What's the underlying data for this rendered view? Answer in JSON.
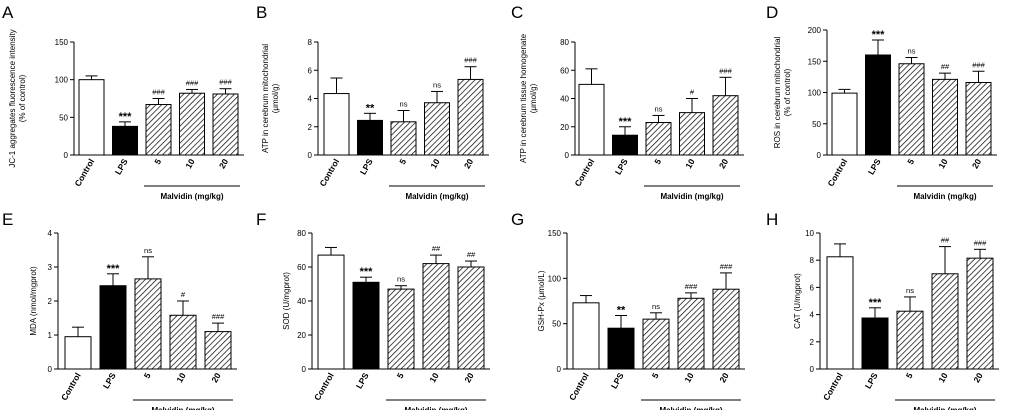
{
  "chart_data": [
    {
      "panel": "A",
      "type": "bar",
      "ylabel": "JC-1 aggregates fluorescence intensity\n(% of control)",
      "ylim": [
        0,
        150
      ],
      "yticks": [
        0,
        50,
        100,
        150
      ],
      "ytick_labels": [
        "0",
        "50",
        "100",
        "150"
      ],
      "categories": [
        "Control",
        "LPS",
        "5",
        "10",
        "20"
      ],
      "values": [
        100,
        38,
        67,
        82,
        81
      ],
      "errors": [
        5,
        6,
        8,
        5,
        7
      ],
      "annotations": [
        "",
        "***",
        "###",
        "###",
        "###"
      ],
      "group_label": "Malvidin (mg/kg)"
    },
    {
      "panel": "B",
      "type": "bar",
      "ylabel": "ATP in cerebrum mitochondrial\n(μmol/g)",
      "ylim": [
        0,
        8
      ],
      "yticks": [
        0,
        2,
        4,
        6,
        8
      ],
      "ytick_labels": [
        "0",
        "2",
        "4",
        "6",
        "8"
      ],
      "categories": [
        "Control",
        "LPS",
        "5",
        "10",
        "20"
      ],
      "values": [
        4.35,
        2.45,
        2.35,
        3.7,
        5.35
      ],
      "errors": [
        1.1,
        0.5,
        0.8,
        0.8,
        0.9
      ],
      "annotations": [
        "",
        "**",
        "ns",
        "ns",
        "###"
      ],
      "group_label": "Malvidin (mg/kg)"
    },
    {
      "panel": "C",
      "type": "bar",
      "ylabel": "ATP in cerebrum tissue homogenate\n(μmol/g)",
      "ylim": [
        0,
        80
      ],
      "yticks": [
        0,
        20,
        40,
        60,
        80
      ],
      "ytick_labels": [
        "0",
        "20",
        "40",
        "60",
        "80"
      ],
      "categories": [
        "Control",
        "LPS",
        "5",
        "10",
        "20"
      ],
      "values": [
        50,
        14,
        23,
        30,
        42
      ],
      "errors": [
        11,
        6,
        5,
        10,
        13
      ],
      "annotations": [
        "",
        "***",
        "ns",
        "#",
        "###"
      ],
      "group_label": "Malvidin (mg/kg)"
    },
    {
      "panel": "D",
      "type": "bar",
      "ylabel": "ROS in cerebrum mitochondrial\n(% of control)",
      "ylim": [
        0,
        200
      ],
      "yticks": [
        0,
        50,
        100,
        150,
        200
      ],
      "ytick_labels": [
        "0",
        "50",
        "100",
        "150",
        "200"
      ],
      "categories": [
        "Control",
        "LPS",
        "5",
        "10",
        "20"
      ],
      "values": [
        99,
        160,
        146,
        121,
        116
      ],
      "errors": [
        6,
        24,
        10,
        10,
        18
      ],
      "annotations": [
        "",
        "***",
        "ns",
        "##",
        "###"
      ],
      "group_label": "Malvidin (mg/kg)"
    },
    {
      "panel": "E",
      "type": "bar",
      "ylabel": "MDA (nmol/mgprot)",
      "ylim": [
        0,
        4
      ],
      "yticks": [
        0,
        1,
        2,
        3,
        4
      ],
      "ytick_labels": [
        "0",
        "1",
        "2",
        "3",
        "4"
      ],
      "categories": [
        "Control",
        "LPS",
        "5",
        "10",
        "20"
      ],
      "values": [
        0.95,
        2.45,
        2.65,
        1.58,
        1.1
      ],
      "errors": [
        0.28,
        0.35,
        0.65,
        0.42,
        0.25
      ],
      "annotations": [
        "",
        "***",
        "ns",
        "#",
        "###"
      ],
      "group_label": "Malvidin (mg/kg)"
    },
    {
      "panel": "F",
      "type": "bar",
      "ylabel": "SOD (U/mgprot)",
      "ylim": [
        0,
        80
      ],
      "yticks": [
        0,
        20,
        40,
        60,
        80
      ],
      "ytick_labels": [
        "0",
        "20",
        "40",
        "60",
        "80"
      ],
      "categories": [
        "Control",
        "LPS",
        "5",
        "10",
        "20"
      ],
      "values": [
        67,
        51,
        47,
        62,
        60
      ],
      "errors": [
        4.5,
        3,
        2,
        5,
        3.5
      ],
      "annotations": [
        "",
        "***",
        "ns",
        "##",
        "##"
      ],
      "group_label": "Malvidin (mg/kg)"
    },
    {
      "panel": "G",
      "type": "bar",
      "ylabel": "GSH-Px (μmol/L)",
      "ylim": [
        0,
        150
      ],
      "yticks": [
        0,
        50,
        100,
        150
      ],
      "ytick_labels": [
        "0",
        "50",
        "100",
        "150"
      ],
      "categories": [
        "Control",
        "LPS",
        "5",
        "10",
        "20"
      ],
      "values": [
        73,
        45,
        55,
        78,
        88
      ],
      "errors": [
        8,
        14,
        7,
        6,
        18
      ],
      "annotations": [
        "",
        "**",
        "ns",
        "###",
        "###"
      ],
      "group_label": "Malvidin (mg/kg)"
    },
    {
      "panel": "H",
      "type": "bar",
      "ylabel": "CAT (U/mgprot)",
      "ylim": [
        0,
        10
      ],
      "yticks": [
        0,
        2,
        4,
        6,
        8,
        10
      ],
      "ytick_labels": [
        "0",
        "2",
        "4",
        "6",
        "8",
        "10"
      ],
      "categories": [
        "Control",
        "LPS",
        "5",
        "10",
        "20"
      ],
      "values": [
        8.25,
        3.75,
        4.25,
        7.0,
        8.15
      ],
      "errors": [
        0.95,
        0.75,
        1.05,
        2.0,
        0.65
      ],
      "annotations": [
        "",
        "***",
        "ns",
        "##",
        "###"
      ],
      "group_label": "Malvidin (mg/kg)"
    }
  ],
  "colors": {
    "control_fill": "#ffffff",
    "lps_fill": "#000000",
    "hatch_stroke": "#000000",
    "axis": "#000000"
  }
}
